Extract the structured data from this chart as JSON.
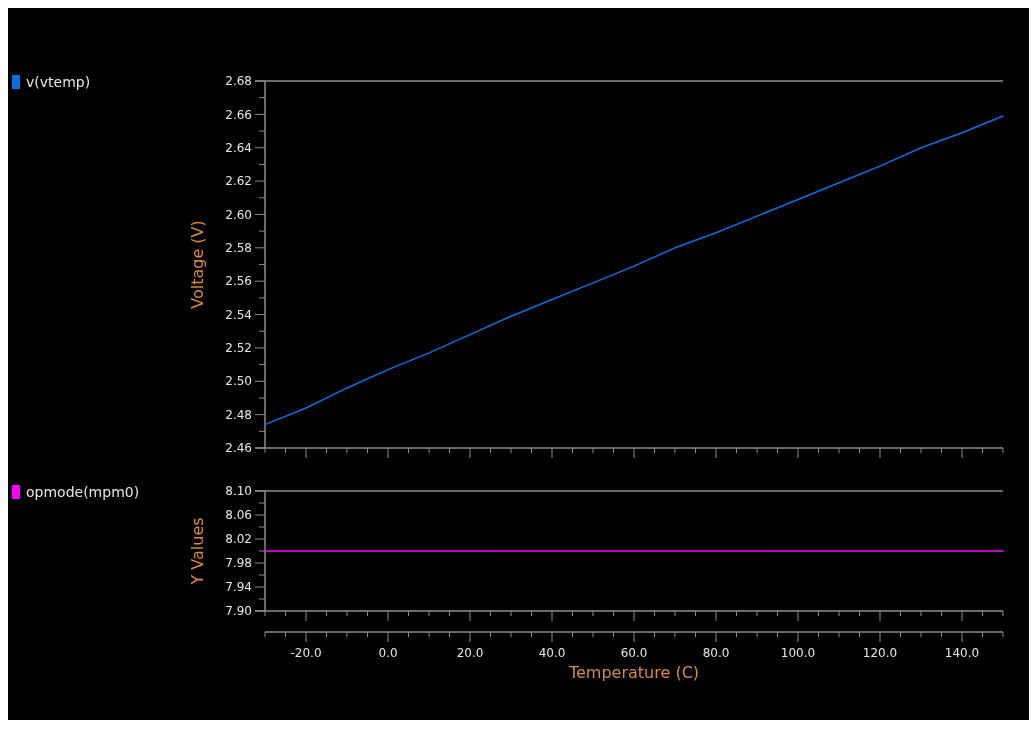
{
  "chart_data": [
    {
      "type": "line",
      "ylabel": "Voltage (V)",
      "x": [
        -30,
        -20,
        -10,
        0,
        10,
        20,
        30,
        40,
        50,
        60,
        70,
        80,
        90,
        100,
        110,
        120,
        130,
        140,
        150
      ],
      "series": [
        {
          "name": "v(vtemp)",
          "color": "#0a6fe0",
          "values": [
            2.474,
            2.484,
            2.496,
            2.507,
            2.517,
            2.528,
            2.539,
            2.549,
            2.559,
            2.569,
            2.58,
            2.589,
            2.599,
            2.609,
            2.619,
            2.629,
            2.64,
            2.649,
            2.659
          ]
        }
      ],
      "xlim": [
        -30,
        150
      ],
      "xticks": [
        {
          "value": -30,
          "label": null
        },
        {
          "value": -25,
          "label": null
        },
        -20,
        {
          "value": -15,
          "label": null
        },
        {
          "value": -10,
          "label": null
        },
        {
          "value": -5,
          "label": null
        },
        0,
        {
          "value": 5,
          "label": null
        },
        {
          "value": 10,
          "label": null
        },
        {
          "value": 15,
          "label": null
        },
        20,
        {
          "value": 25,
          "label": null
        },
        {
          "value": 30,
          "label": null
        },
        {
          "value": 35,
          "label": null
        },
        40,
        {
          "value": 45,
          "label": null
        },
        {
          "value": 50,
          "label": null
        },
        {
          "value": 55,
          "label": null
        },
        60,
        {
          "value": 65,
          "label": null
        },
        {
          "value": 70,
          "label": null
        },
        {
          "value": 75,
          "label": null
        },
        80,
        {
          "value": 85,
          "label": null
        },
        {
          "value": 90,
          "label": null
        },
        {
          "value": 95,
          "label": null
        },
        100,
        {
          "value": 105,
          "label": null
        },
        {
          "value": 110,
          "label": null
        },
        {
          "value": 115,
          "label": null
        },
        120,
        {
          "value": 125,
          "label": null
        },
        {
          "value": 130,
          "label": null
        },
        {
          "value": 135,
          "label": null
        },
        140,
        {
          "value": 145,
          "label": null
        },
        {
          "value": 150,
          "label": null
        }
      ],
      "ylim": [
        2.46,
        2.68
      ],
      "yticks": [
        {
          "value": 2.46,
          "label": "2.46"
        },
        {
          "value": 2.47,
          "label": null
        },
        {
          "value": 2.48,
          "label": "2.48"
        },
        {
          "value": 2.49,
          "label": null
        },
        {
          "value": 2.5,
          "label": "2.50"
        },
        {
          "value": 2.51,
          "label": null
        },
        {
          "value": 2.52,
          "label": "2.52"
        },
        {
          "value": 2.53,
          "label": null
        },
        {
          "value": 2.54,
          "label": "2.54"
        },
        {
          "value": 2.55,
          "label": null
        },
        {
          "value": 2.56,
          "label": "2.56"
        },
        {
          "value": 2.57,
          "label": null
        },
        {
          "value": 2.58,
          "label": "2.58"
        },
        {
          "value": 2.59,
          "label": null
        },
        {
          "value": 2.6,
          "label": "2.60"
        },
        {
          "value": 2.61,
          "label": null
        },
        {
          "value": 2.62,
          "label": "2.62"
        },
        {
          "value": 2.63,
          "label": null
        },
        {
          "value": 2.64,
          "label": "2.64"
        },
        {
          "value": 2.65,
          "label": null
        },
        {
          "value": 2.66,
          "label": "2.66"
        },
        {
          "value": 2.67,
          "label": null
        },
        {
          "value": 2.68,
          "label": "2.68"
        }
      ],
      "tick_labels": "y",
      "legend": "top left",
      "grid": false
    },
    {
      "type": "line",
      "xlabel": "Temperature (C)",
      "ylabel": "Y Values",
      "x": [
        -30,
        150
      ],
      "series": [
        {
          "name": "opmode(mpm0)",
          "color": "#ff00ff",
          "values": [
            8.0,
            8.0
          ]
        }
      ],
      "xlim": [
        -30,
        150
      ],
      "xticks": [
        {
          "value": -30,
          "label": null
        },
        {
          "value": -25,
          "label": null
        },
        {
          "value": -20,
          "label": "-20.0"
        },
        {
          "value": -15,
          "label": null
        },
        {
          "value": -10,
          "label": null
        },
        {
          "value": -5,
          "label": null
        },
        {
          "value": 0,
          "label": "0.0"
        },
        {
          "value": 5,
          "label": null
        },
        {
          "value": 10,
          "label": null
        },
        {
          "value": 15,
          "label": null
        },
        {
          "value": 20,
          "label": "20.0"
        },
        {
          "value": 25,
          "label": null
        },
        {
          "value": 30,
          "label": null
        },
        {
          "value": 35,
          "label": null
        },
        {
          "value": 40,
          "label": "40.0"
        },
        {
          "value": 45,
          "label": null
        },
        {
          "value": 50,
          "label": null
        },
        {
          "value": 55,
          "label": null
        },
        {
          "value": 60,
          "label": "60.0"
        },
        {
          "value": 65,
          "label": null
        },
        {
          "value": 70,
          "label": null
        },
        {
          "value": 75,
          "label": null
        },
        {
          "value": 80,
          "label": "80.0"
        },
        {
          "value": 85,
          "label": null
        },
        {
          "value": 90,
          "label": null
        },
        {
          "value": 95,
          "label": null
        },
        {
          "value": 100,
          "label": "100.0"
        },
        {
          "value": 105,
          "label": null
        },
        {
          "value": 110,
          "label": null
        },
        {
          "value": 115,
          "label": null
        },
        {
          "value": 120,
          "label": "120.0"
        },
        {
          "value": 125,
          "label": null
        },
        {
          "value": 130,
          "label": null
        },
        {
          "value": 135,
          "label": null
        },
        {
          "value": 140,
          "label": "140.0"
        },
        {
          "value": 145,
          "label": null
        },
        {
          "value": 150,
          "label": null
        }
      ],
      "ylim": [
        7.9,
        8.1
      ],
      "yticks": [
        {
          "value": 7.9,
          "label": "7.90"
        },
        {
          "value": 7.92,
          "label": null
        },
        {
          "value": 7.94,
          "label": "7.94"
        },
        {
          "value": 7.96,
          "label": null
        },
        {
          "value": 7.98,
          "label": "7.98"
        },
        {
          "value": 8.0,
          "label": null
        },
        {
          "value": 8.02,
          "label": "8.02"
        },
        {
          "value": 8.04,
          "label": null
        },
        {
          "value": 8.06,
          "label": "8.06"
        },
        {
          "value": 8.08,
          "label": null
        },
        {
          "value": 8.1,
          "label": "8.10"
        }
      ],
      "legend": "top left",
      "grid": false
    }
  ]
}
